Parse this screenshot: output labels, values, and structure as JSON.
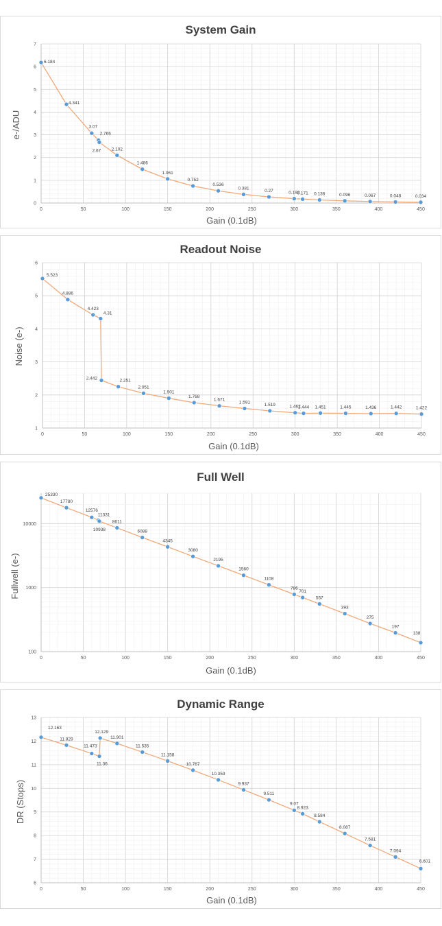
{
  "chart_data": [
    {
      "type": "line",
      "title": "System Gain",
      "xlabel": "Gain (0.1dB)",
      "ylabel": "e-/ADU",
      "xlim": [
        0,
        450
      ],
      "ylim": [
        0,
        7
      ],
      "yscale": "linear",
      "xticks": [
        0,
        50,
        100,
        150,
        200,
        250,
        300,
        350,
        400,
        450
      ],
      "yticks": [
        0,
        1,
        2,
        3,
        4,
        5,
        6,
        7
      ],
      "ytick_labels": [
        "0",
        "1",
        "2",
        "3",
        "4",
        "5",
        "6",
        "7"
      ],
      "grid": true,
      "series": [
        {
          "x": [
            0,
            30,
            60,
            68,
            69,
            90,
            120,
            150,
            180,
            210,
            240,
            270,
            300,
            310,
            330,
            360,
            390,
            420,
            450
          ],
          "y": [
            6.184,
            4.341,
            3.07,
            2.766,
            2.67,
            2.102,
            1.486,
            1.061,
            0.752,
            0.536,
            0.381,
            0.27,
            0.192,
            0.171,
            0.136,
            0.096,
            0.067,
            0.048,
            0.034
          ],
          "labels": [
            "6.184",
            "4.341",
            "3.07",
            "2.766",
            "2.67",
            "2.102",
            "1.486",
            "1.061",
            "0.752",
            "0.536",
            "0.381",
            "0.27",
            "0.192",
            "0.171",
            "0.136",
            "0.096",
            "0.067",
            "0.048",
            "0.034"
          ]
        }
      ]
    },
    {
      "type": "line",
      "title": "Readout Noise",
      "xlabel": "Gain (0.1dB)",
      "ylabel": "Noise (e-)",
      "xlim": [
        0,
        450
      ],
      "ylim": [
        1,
        6
      ],
      "yscale": "linear",
      "xticks": [
        0,
        50,
        100,
        150,
        200,
        250,
        300,
        350,
        400,
        450
      ],
      "yticks": [
        1,
        2,
        3,
        4,
        5,
        6
      ],
      "ytick_labels": [
        "1",
        "2",
        "3",
        "4",
        "5",
        "6"
      ],
      "grid": true,
      "series": [
        {
          "x": [
            0,
            30,
            60,
            69,
            70,
            90,
            120,
            150,
            180,
            210,
            240,
            270,
            300,
            310,
            330,
            360,
            390,
            420,
            450
          ],
          "y": [
            5.523,
            4.886,
            4.423,
            4.31,
            2.442,
            2.251,
            2.051,
            1.901,
            1.768,
            1.671,
            1.591,
            1.519,
            1.462,
            1.444,
            1.451,
            1.445,
            1.436,
            1.442,
            1.422
          ],
          "labels": [
            "5.523",
            "4.886",
            "4.423",
            "4.31",
            "2.442",
            "2.251",
            "2.051",
            "1.901",
            "1.768",
            "1.671",
            "1.591",
            "1.519",
            "1.462",
            "1.444",
            "1.451",
            "1.445",
            "1.436",
            "1.442",
            "1.422"
          ]
        }
      ]
    },
    {
      "type": "line",
      "title": "Full Well",
      "xlabel": "Gain (0.1dB)",
      "ylabel": "Fullwell (e-)",
      "xlim": [
        0,
        450
      ],
      "ylim": [
        100,
        30000
      ],
      "yscale": "log",
      "xticks": [
        0,
        50,
        100,
        150,
        200,
        250,
        300,
        350,
        400,
        450
      ],
      "yticks": [
        100,
        1000,
        10000
      ],
      "ytick_labels": [
        "100",
        "1000",
        "10000"
      ],
      "grid": true,
      "series": [
        {
          "x": [
            0,
            30,
            60,
            68,
            69,
            90,
            120,
            150,
            180,
            210,
            240,
            270,
            300,
            310,
            330,
            360,
            390,
            420,
            450
          ],
          "y": [
            25330,
            17780,
            12576,
            11331,
            10938,
            8611,
            6088,
            4345,
            3080,
            2195,
            1560,
            1108,
            786,
            701,
            557,
            393,
            275,
            197,
            138
          ],
          "labels": [
            "25330",
            "17780",
            "12576",
            "11331",
            "10938",
            "8611",
            "6088",
            "4345",
            "3080",
            "2195",
            "1560",
            "1108",
            "786",
            "701",
            "557",
            "393",
            "275",
            "197",
            "138"
          ]
        }
      ]
    },
    {
      "type": "line",
      "title": "Dynamic Range",
      "xlabel": "Gain (0.1dB)",
      "ylabel": "DR (Stops)",
      "xlim": [
        0,
        450
      ],
      "ylim": [
        6,
        13
      ],
      "yscale": "linear",
      "xticks": [
        0,
        50,
        100,
        150,
        200,
        250,
        300,
        350,
        400,
        450
      ],
      "yticks": [
        6,
        7,
        8,
        9,
        10,
        11,
        12,
        13
      ],
      "ytick_labels": [
        "6",
        "7",
        "8",
        "9",
        "10",
        "11",
        "12",
        "13"
      ],
      "grid": true,
      "series": [
        {
          "x": [
            0,
            30,
            60,
            69,
            70,
            90,
            120,
            150,
            180,
            210,
            240,
            270,
            300,
            310,
            330,
            360,
            390,
            420,
            450
          ],
          "y": [
            12.163,
            11.829,
            11.473,
            11.36,
            12.129,
            11.901,
            11.535,
            11.158,
            10.767,
            10.359,
            9.937,
            9.511,
            9.07,
            8.923,
            8.584,
            8.087,
            7.581,
            7.094,
            6.601
          ],
          "labels": [
            "12.163",
            "11.829",
            "11.473",
            "11.36",
            "12.129",
            "11.901",
            "11.535",
            "11.158",
            "10.767",
            "10.359",
            "9.937",
            "9.511",
            "9.07",
            "8.923",
            "8.584",
            "8.087",
            "7.581",
            "7.094",
            "6.601"
          ]
        }
      ]
    }
  ],
  "colors": {
    "line": "#f0a878",
    "marker": "#5b9bd5",
    "grid": "#d9d9d9",
    "text": "#595959"
  }
}
